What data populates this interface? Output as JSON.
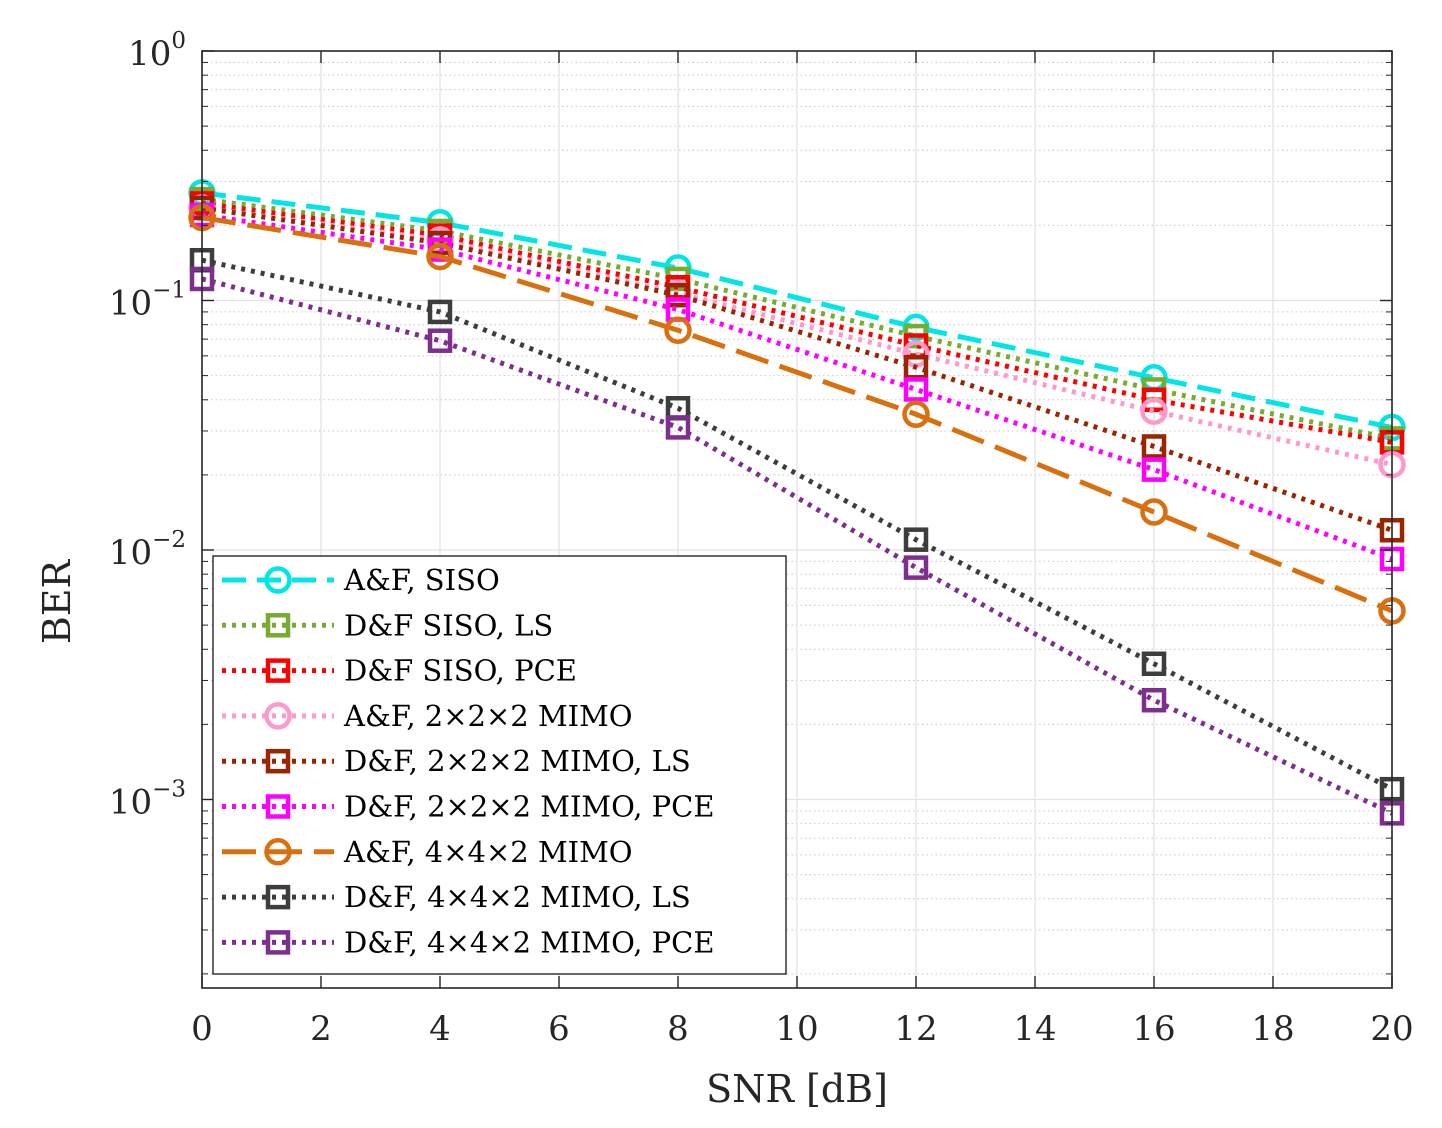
{
  "chart_data": {
    "type": "line",
    "xlabel": "SNR [dB]",
    "ylabel": "BER",
    "yscale": "log",
    "xlim": [
      0,
      20
    ],
    "ylim": [
      0.0002,
      1
    ],
    "grid": true,
    "legend_position": "bottom-left",
    "x_ticks": [
      "0",
      "2",
      "4",
      "6",
      "8",
      "10",
      "12",
      "14",
      "16",
      "18",
      "20"
    ],
    "y_ticks": [
      {
        "base": "10",
        "exp": "0",
        "value": 1
      },
      {
        "base": "10",
        "exp": "−1",
        "value": 0.1
      },
      {
        "base": "10",
        "exp": "−2",
        "value": 0.01
      },
      {
        "base": "10",
        "exp": "−3",
        "value": 0.001
      }
    ],
    "x": [
      0,
      4,
      8,
      12,
      16,
      20
    ],
    "series": [
      {
        "name": "A&F, SISO",
        "color": "#00e5e5",
        "marker": "circle",
        "dash": "dashed",
        "values": [
          0.27,
          0.205,
          0.135,
          0.078,
          0.049,
          0.031
        ]
      },
      {
        "name": "D&F SISO, LS",
        "color": "#77ac30",
        "marker": "square",
        "dash": "dotted",
        "values": [
          0.255,
          0.19,
          0.122,
          0.072,
          0.044,
          0.028
        ]
      },
      {
        "name": "D&F SISO, PCE",
        "color": "#ff0000",
        "marker": "square",
        "dash": "dotted",
        "values": [
          0.245,
          0.182,
          0.113,
          0.066,
          0.04,
          0.027
        ]
      },
      {
        "name": "A&F, 2×2×2 MIMO",
        "color": "#ff99cc",
        "marker": "circle",
        "dash": "dotted",
        "values": [
          0.235,
          0.175,
          0.107,
          0.061,
          0.036,
          0.022
        ]
      },
      {
        "name": "D&F, 2×2×2 MIMO, LS",
        "color": "#992600",
        "marker": "square",
        "dash": "dotted",
        "values": [
          0.235,
          0.17,
          0.105,
          0.054,
          0.026,
          0.012
        ]
      },
      {
        "name": "D&F, 2×2×2 MIMO, PCE",
        "color": "#ff00ff",
        "marker": "square",
        "dash": "dotted",
        "values": [
          0.22,
          0.16,
          0.092,
          0.044,
          0.021,
          0.0092
        ]
      },
      {
        "name": "A&F, 4×4×2 MIMO",
        "color": "#d97010",
        "marker": "circle",
        "dash": "longdash",
        "values": [
          0.215,
          0.15,
          0.076,
          0.035,
          0.0142,
          0.0057
        ]
      },
      {
        "name": "D&F, 4×4×2 MIMO, LS",
        "color": "#3d3d3d",
        "marker": "square",
        "dash": "dotted",
        "values": [
          0.145,
          0.09,
          0.037,
          0.011,
          0.0035,
          0.0011
        ]
      },
      {
        "name": "D&F, 4×4×2 MIMO, PCE",
        "color": "#7e2f8e",
        "marker": "square",
        "dash": "dotted",
        "values": [
          0.122,
          0.069,
          0.031,
          0.0085,
          0.0025,
          0.00088
        ]
      }
    ]
  }
}
